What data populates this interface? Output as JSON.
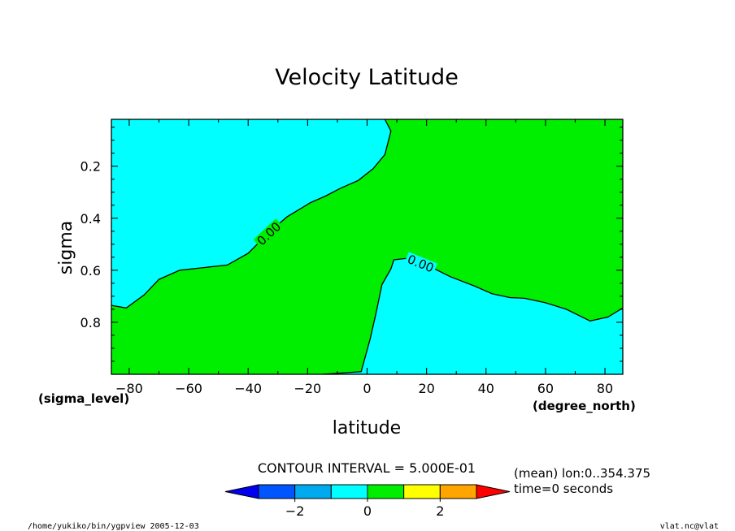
{
  "chart_data": {
    "type": "contour",
    "title": "Velocity Latitude",
    "xlabel": "latitude",
    "ylabel": "sigma",
    "x_unit": "(degree_north)",
    "y_unit": "(sigma_level)",
    "xlim": [
      -86,
      86
    ],
    "ylim": [
      0.02,
      1.0
    ],
    "y_inverted": true,
    "x_ticks": [
      -80,
      -60,
      -40,
      -20,
      0,
      20,
      40,
      60,
      80
    ],
    "y_ticks": [
      0.2,
      0.4,
      0.6,
      0.8
    ],
    "colors": {
      "positive": "#00ee00",
      "negative": "#00ffff"
    },
    "zero_contours": [
      {
        "label": "0.00",
        "label_at": [
          -33,
          0.46
        ],
        "points": [
          [
            -86,
            0.735
          ],
          [
            -81,
            0.745
          ],
          [
            -75,
            0.695
          ],
          [
            -70,
            0.635
          ],
          [
            -63,
            0.6
          ],
          [
            -55,
            0.59
          ],
          [
            -47,
            0.58
          ],
          [
            -40,
            0.535
          ],
          [
            -33,
            0.455
          ],
          [
            -27,
            0.395
          ],
          [
            -19,
            0.34
          ],
          [
            -14,
            0.315
          ],
          [
            -9,
            0.285
          ],
          [
            -3,
            0.255
          ],
          [
            2,
            0.21
          ],
          [
            6,
            0.155
          ],
          [
            8,
            0.065
          ],
          [
            6,
            0.02
          ]
        ]
      },
      {
        "label": "0.00",
        "label_at": [
          18,
          0.575
        ],
        "points": [
          [
            -15,
            1.0
          ],
          [
            -2,
            0.99
          ],
          [
            1,
            0.865
          ],
          [
            3,
            0.765
          ],
          [
            5,
            0.655
          ],
          [
            8,
            0.595
          ],
          [
            9,
            0.56
          ],
          [
            13,
            0.555
          ],
          [
            21,
            0.585
          ],
          [
            28,
            0.625
          ],
          [
            36,
            0.66
          ],
          [
            42,
            0.69
          ],
          [
            48,
            0.705
          ],
          [
            53,
            0.708
          ],
          [
            60,
            0.725
          ],
          [
            67,
            0.75
          ],
          [
            75,
            0.795
          ],
          [
            81,
            0.78
          ],
          [
            86,
            0.745
          ]
        ]
      }
    ],
    "contour_interval_label": "CONTOUR INTERVAL = 5.000E-01",
    "colorbar": {
      "levels": [
        -3,
        -2,
        -1,
        0,
        1,
        2,
        3
      ],
      "tick_labels": [
        "-2",
        "0",
        "2"
      ],
      "colors": [
        "#0000ee",
        "#0055ff",
        "#00aaee",
        "#00ffff",
        "#00ee00",
        "#ffff00",
        "#ffa500",
        "#ff0000"
      ]
    }
  },
  "info_line1": "(mean) lon:0..354.375",
  "info_line2": "time=0 seconds",
  "footer_left": "/home/yukiko/bin/ygpview  2005-12-03",
  "footer_right": "vlat.nc@vlat"
}
